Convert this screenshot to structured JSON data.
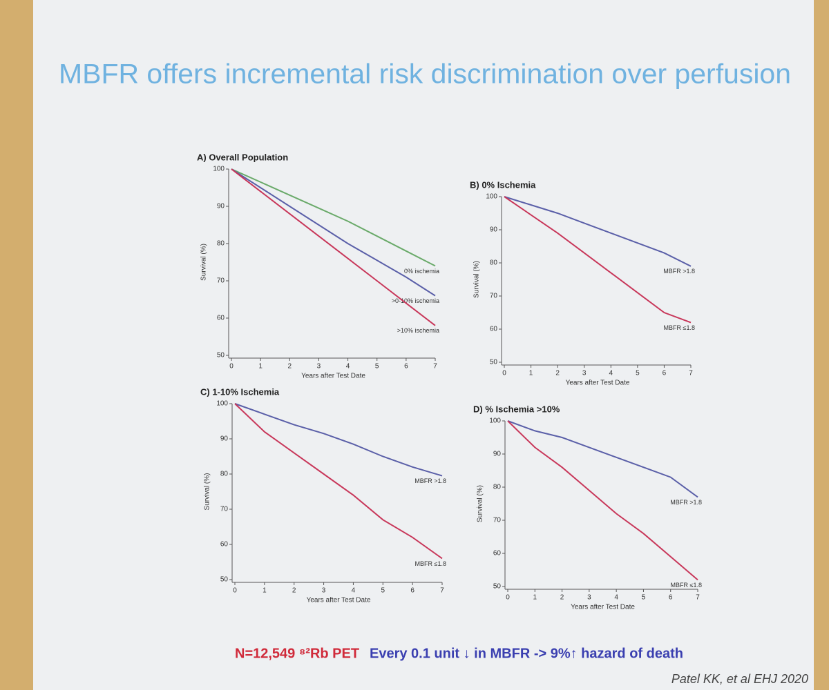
{
  "title": "MBFR offers incremental risk discrimination over perfusion",
  "footer": {
    "sample": "N=12,549 ⁸²Rb PET",
    "finding": "Every 0.1 unit ↓ in MBFR -> 9%↑ hazard of death"
  },
  "citation": "Patel KK, et al EHJ 2020",
  "chart_data": [
    {
      "type": "line",
      "title": "A) Overall Population",
      "xlabel": "Years after Test Date",
      "ylabel": "Survival (%)",
      "x": [
        0,
        1,
        2,
        3,
        4,
        5,
        6,
        7
      ],
      "xlim": [
        0,
        7
      ],
      "ylim": [
        50,
        100
      ],
      "xticks": [
        0,
        1,
        2,
        3,
        4,
        5,
        6,
        7
      ],
      "yticks": [
        50,
        60,
        70,
        80,
        90,
        100
      ],
      "series": [
        {
          "name": "0% ischemia",
          "color": "#6aaa6a",
          "values": [
            100,
            96.5,
            93,
            89.5,
            86,
            82,
            78,
            74
          ]
        },
        {
          "name": ">0-10% ischemia",
          "color": "#5a5fa8",
          "values": [
            100,
            95,
            90,
            85,
            80,
            75.5,
            71,
            66
          ]
        },
        {
          "name": ">10% ischemia",
          "color": "#c8375a",
          "values": [
            100,
            94,
            88,
            82,
            76,
            70,
            64,
            58
          ]
        }
      ]
    },
    {
      "type": "line",
      "title": "B) 0% Ischemia",
      "xlabel": "Years after Test Date",
      "ylabel": "Survival (%)",
      "x": [
        0,
        1,
        2,
        3,
        4,
        5,
        6,
        7
      ],
      "xlim": [
        0,
        7
      ],
      "ylim": [
        50,
        100
      ],
      "xticks": [
        0,
        1,
        2,
        3,
        4,
        5,
        6,
        7
      ],
      "yticks": [
        50,
        60,
        70,
        80,
        90,
        100
      ],
      "series": [
        {
          "name": "MBFR >1.8",
          "color": "#5a5fa8",
          "values": [
            100,
            97.5,
            95,
            92,
            89,
            86,
            83,
            79
          ]
        },
        {
          "name": "MBFR ≤1.8",
          "color": "#c8375a",
          "values": [
            100,
            94.5,
            89,
            83,
            77,
            71,
            65,
            62
          ]
        }
      ]
    },
    {
      "type": "line",
      "title": "C) 1-10% Ischemia",
      "xlabel": "Years after Test Date",
      "ylabel": "Survival (%)",
      "x": [
        0,
        1,
        2,
        3,
        4,
        5,
        6,
        7
      ],
      "xlim": [
        0,
        7
      ],
      "ylim": [
        50,
        100
      ],
      "xticks": [
        0,
        1,
        2,
        3,
        4,
        5,
        6,
        7
      ],
      "yticks": [
        50,
        60,
        70,
        80,
        90,
        100
      ],
      "series": [
        {
          "name": "MBFR >1.8",
          "color": "#5a5fa8",
          "values": [
            100,
            97,
            94,
            91.5,
            88.5,
            85,
            82,
            79.5
          ]
        },
        {
          "name": "MBFR ≤1.8",
          "color": "#c8375a",
          "values": [
            100,
            92,
            86,
            80,
            74,
            67,
            62,
            56
          ]
        }
      ]
    },
    {
      "type": "line",
      "title": "D) % Ischemia >10%",
      "xlabel": "Years after Test Date",
      "ylabel": "Survival (%)",
      "x": [
        0,
        1,
        2,
        3,
        4,
        5,
        6,
        7
      ],
      "xlim": [
        0,
        7
      ],
      "ylim": [
        50,
        100
      ],
      "xticks": [
        0,
        1,
        2,
        3,
        4,
        5,
        6,
        7
      ],
      "yticks": [
        50,
        60,
        70,
        80,
        90,
        100
      ],
      "series": [
        {
          "name": "MBFR >1.8",
          "color": "#5a5fa8",
          "values": [
            100,
            97,
            95,
            92,
            89,
            86,
            83,
            77
          ]
        },
        {
          "name": "MBFR ≤1.8",
          "color": "#c8375a",
          "values": [
            100,
            92,
            86,
            79,
            72,
            66,
            59,
            52
          ]
        }
      ]
    }
  ]
}
